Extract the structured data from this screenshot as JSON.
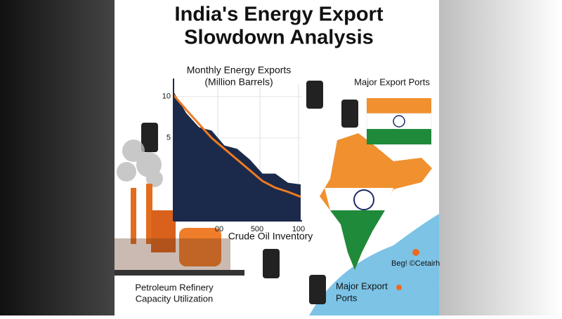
{
  "title_lines": [
    "India's Energy Export",
    "Slowdown Analysis"
  ],
  "chart_data": {
    "type": "area-line",
    "title_lines": [
      "Monthly Energy Exports",
      "(Million Barrels)"
    ],
    "x_label": "Crude Oil Inventory",
    "x_tick_labels": [
      "00",
      "500",
      "100"
    ],
    "ylim": [
      -5,
      11.5
    ],
    "yticks": [
      5,
      10
    ],
    "series": [
      {
        "color": "#1b2a4a",
        "values": [
          10.6,
          8.0,
          6.3,
          5.9,
          4.1,
          3.7,
          2.4,
          0.7,
          0.7,
          -0.4,
          -0.6
        ]
      },
      {
        "color": "#ee7a22",
        "values": [
          10.2,
          8.4,
          6.7,
          5.0,
          3.7,
          2.4,
          1.1,
          -0.2,
          -1.0,
          -1.5,
          -2.1
        ]
      }
    ]
  },
  "ports_label_top": "Major Export Ports",
  "ports_label_bottom_lines": [
    "Major Export",
    "Ports"
  ],
  "refinery_label_lines": [
    "Petroleum Refinery",
    "Capacity Utilization"
  ],
  "map_label": "Beg! ©Cetairh"
}
